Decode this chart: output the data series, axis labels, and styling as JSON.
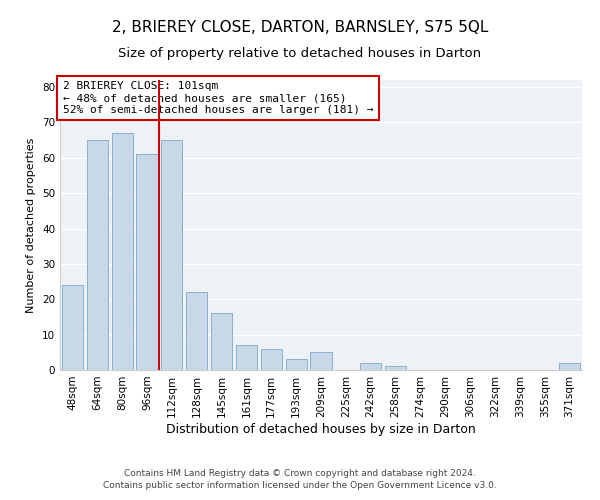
{
  "title": "2, BRIEREY CLOSE, DARTON, BARNSLEY, S75 5QL",
  "subtitle": "Size of property relative to detached houses in Darton",
  "xlabel": "Distribution of detached houses by size in Darton",
  "ylabel": "Number of detached properties",
  "categories": [
    "48sqm",
    "64sqm",
    "80sqm",
    "96sqm",
    "112sqm",
    "128sqm",
    "145sqm",
    "161sqm",
    "177sqm",
    "193sqm",
    "209sqm",
    "225sqm",
    "242sqm",
    "258sqm",
    "274sqm",
    "290sqm",
    "306sqm",
    "322sqm",
    "339sqm",
    "355sqm",
    "371sqm"
  ],
  "values": [
    24,
    65,
    67,
    61,
    65,
    22,
    16,
    7,
    6,
    3,
    5,
    0,
    2,
    1,
    0,
    0,
    0,
    0,
    0,
    0,
    2
  ],
  "bar_color": "#c8d8e8",
  "bar_edge_color": "#8ab0cc",
  "vline_x": 3.5,
  "vline_color": "#cc0000",
  "annotation_title": "2 BRIEREY CLOSE: 101sqm",
  "annotation_line1": "← 48% of detached houses are smaller (165)",
  "annotation_line2": "52% of semi-detached houses are larger (181) →",
  "annotation_box_color": "#cc0000",
  "ylim": [
    0,
    82
  ],
  "yticks": [
    0,
    10,
    20,
    30,
    40,
    50,
    60,
    70,
    80
  ],
  "footer1": "Contains HM Land Registry data © Crown copyright and database right 2024.",
  "footer2": "Contains public sector information licensed under the Open Government Licence v3.0.",
  "title_fontsize": 11,
  "subtitle_fontsize": 9.5,
  "xlabel_fontsize": 9,
  "ylabel_fontsize": 8,
  "tick_fontsize": 7.5,
  "footer_fontsize": 6.5
}
